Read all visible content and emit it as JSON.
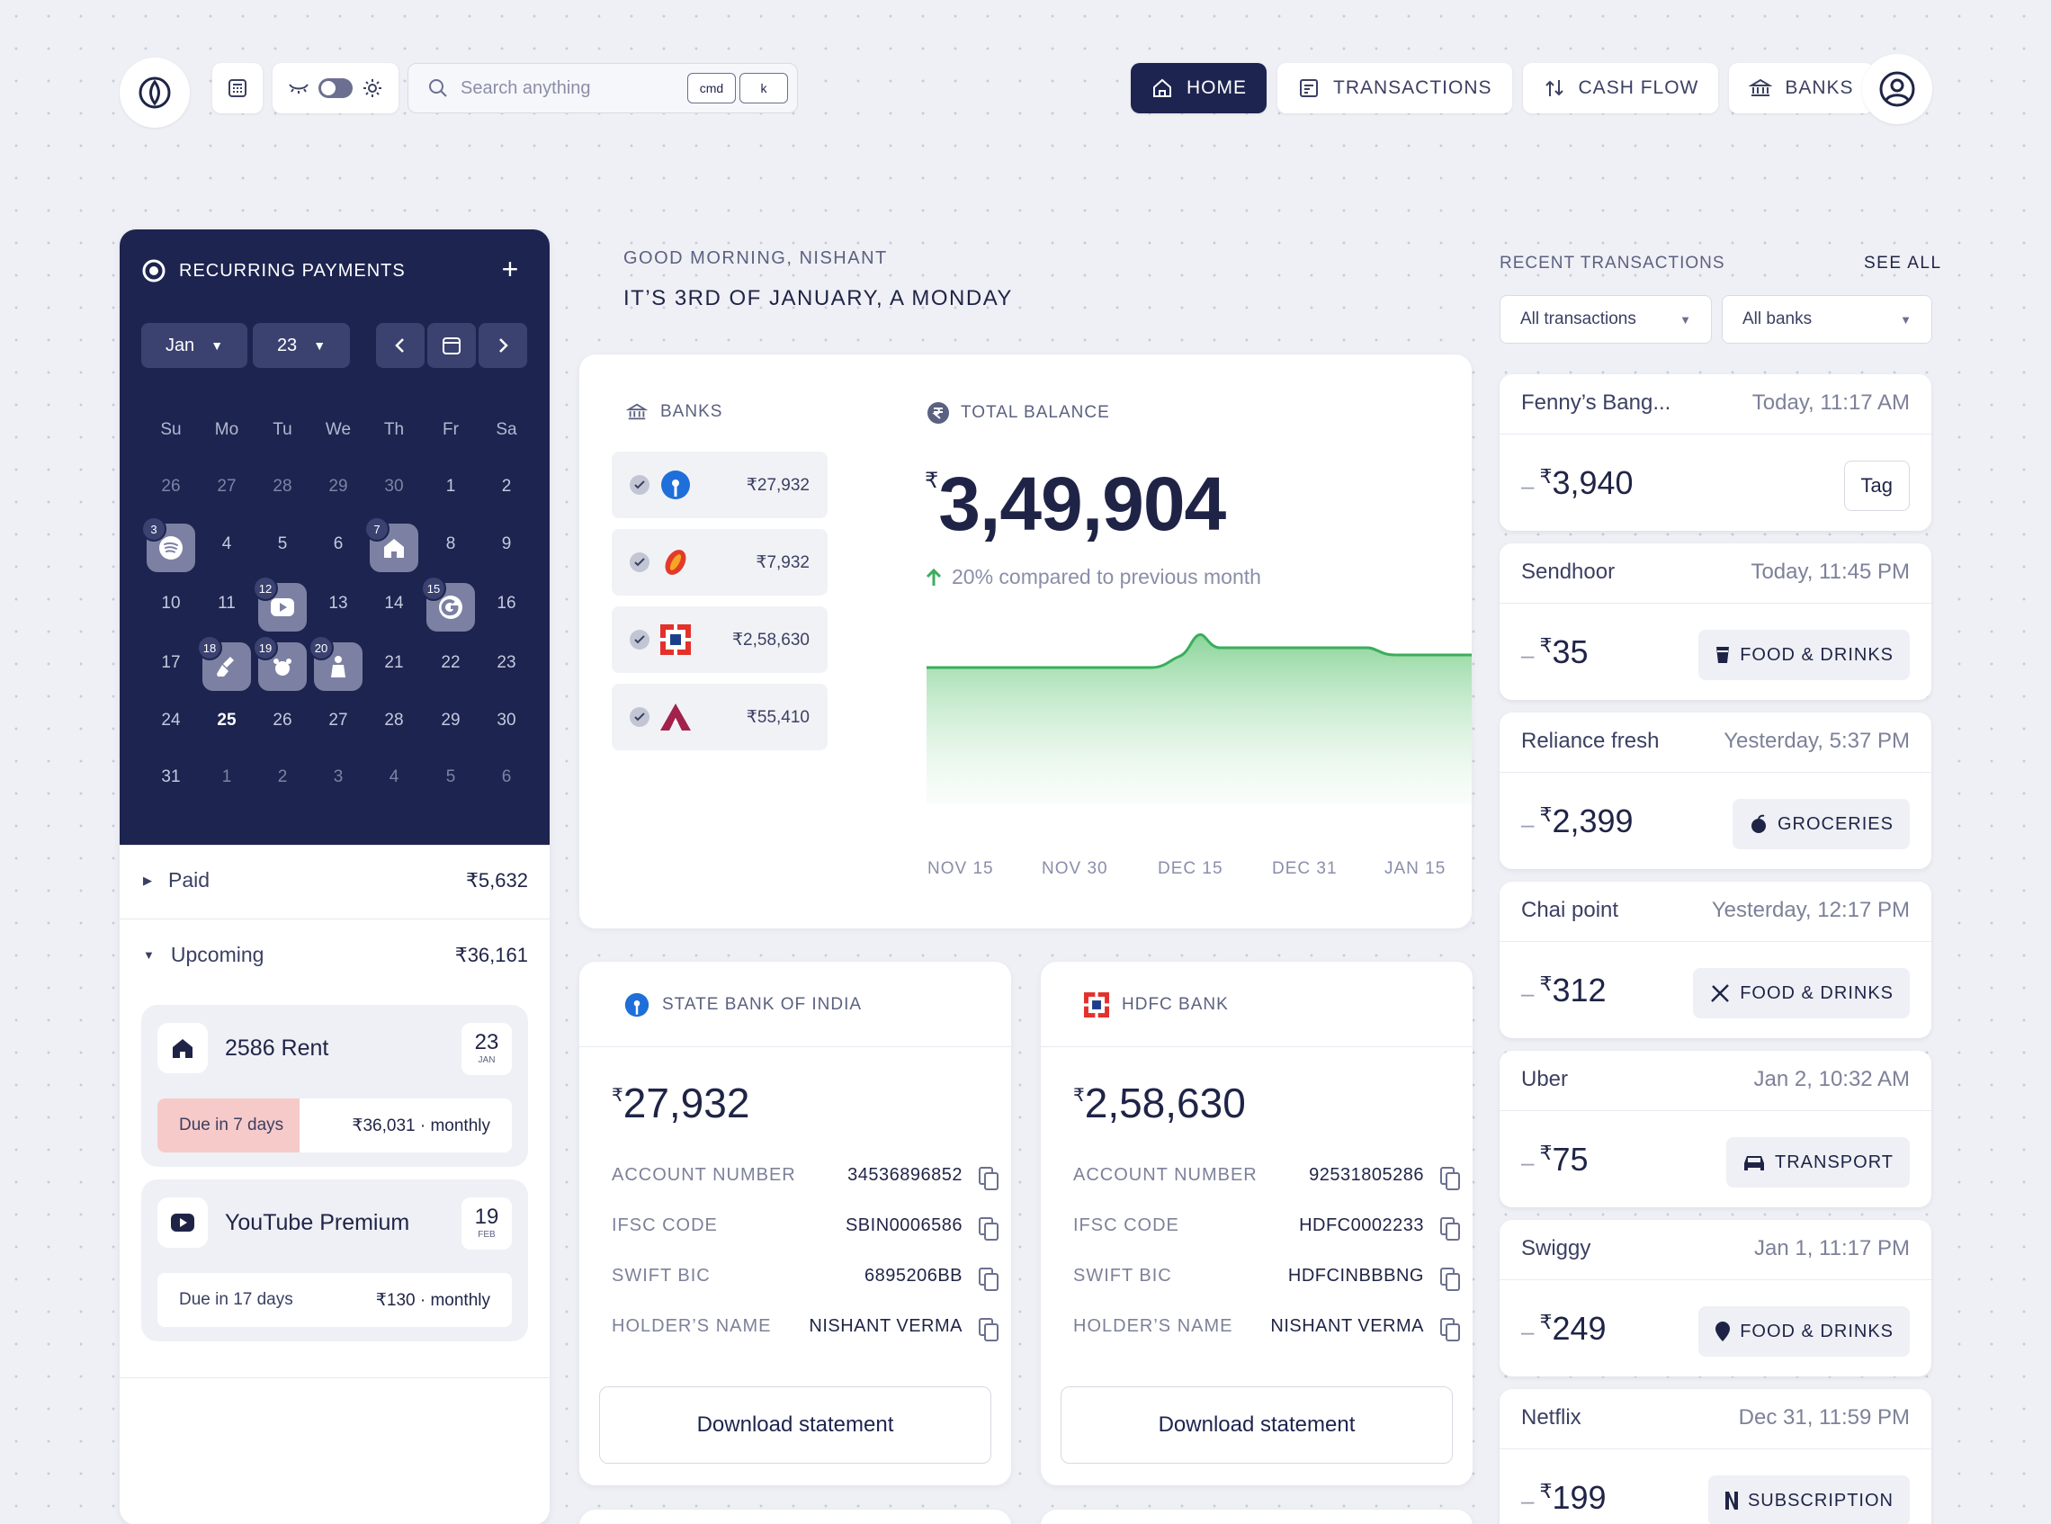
{
  "header": {
    "search_placeholder": "Search anything",
    "kbd1": "cmd",
    "kbd2": "k",
    "nav": [
      {
        "label": "HOME",
        "icon": "home-icon",
        "active": true
      },
      {
        "label": "TRANSACTIONS",
        "icon": "receipt-icon",
        "active": false
      },
      {
        "label": "CASH FLOW",
        "icon": "cashflow-icon",
        "active": false
      },
      {
        "label": "BANKS",
        "icon": "bank-icon",
        "active": false
      }
    ]
  },
  "recurring": {
    "title": "RECURRING PAYMENTS",
    "month": "Jan",
    "year": "23",
    "dow": [
      "Su",
      "Mo",
      "Tu",
      "We",
      "Th",
      "Fr",
      "Sa"
    ],
    "weeks": [
      [
        "26",
        "27",
        "28",
        "29",
        "30",
        "1",
        "2"
      ],
      [
        "3",
        "4",
        "5",
        "6",
        "7",
        "8",
        "9"
      ],
      [
        "10",
        "11",
        "12",
        "13",
        "14",
        "15",
        "16"
      ],
      [
        "17",
        "18",
        "19",
        "20",
        "21",
        "22",
        "23"
      ],
      [
        "24",
        "25",
        "26",
        "27",
        "28",
        "29",
        "30"
      ],
      [
        "31",
        "1",
        "2",
        "3",
        "4",
        "5",
        "6"
      ]
    ],
    "events": [
      {
        "day": "3",
        "icon": "spotify-icon"
      },
      {
        "day": "7",
        "icon": "house-icon"
      },
      {
        "day": "12",
        "icon": "youtube-icon"
      },
      {
        "day": "15",
        "icon": "google-icon"
      },
      {
        "day": "18",
        "icon": "cleaning-icon"
      },
      {
        "day": "19",
        "icon": "pet-icon"
      },
      {
        "day": "20",
        "icon": "maid-icon"
      }
    ],
    "today": "25",
    "paid_label": "Paid",
    "paid_amount": "₹5,632",
    "upcoming_label": "Upcoming",
    "upcoming_amount": "₹36,161",
    "upcoming_items": [
      {
        "name": "2586 Rent",
        "date_day": "23",
        "date_month": "JAN",
        "due": "Due in 7 days",
        "amount": "₹36,031 · monthly",
        "icon": "house-icon"
      },
      {
        "name": "YouTube Premium",
        "date_day": "19",
        "date_month": "FEB",
        "due": "Due in 17 days",
        "amount": "₹130 · monthly",
        "icon": "youtube-icon"
      }
    ]
  },
  "greeting": {
    "line1": "GOOD MORNING, NISHANT",
    "line2": "IT’S 3RD OF JANUARY, A MONDAY"
  },
  "overview": {
    "banks_label": "BANKS",
    "banks": [
      {
        "amount": "₹27,932",
        "icon": "sbi-logo-icon"
      },
      {
        "amount": "₹7,932",
        "icon": "icici-logo-icon"
      },
      {
        "amount": "₹2,58,630",
        "icon": "hdfc-logo-icon"
      },
      {
        "amount": "₹55,410",
        "icon": "axis-logo-icon"
      }
    ],
    "total_label": "TOTAL BALANCE",
    "currency": "₹",
    "total": "3,49,904",
    "compare": "20% compared to previous month",
    "x_labels": [
      "NOV 15",
      "NOV 30",
      "DEC 15",
      "DEC 31",
      "JAN 15"
    ]
  },
  "bank_cards": [
    {
      "name": "STATE BANK OF INDIA",
      "currency": "₹",
      "balance": "27,932",
      "rows": [
        {
          "k": "ACCOUNT NUMBER",
          "v": "34536896852"
        },
        {
          "k": "IFSC CODE",
          "v": "SBIN0006586"
        },
        {
          "k": "SWIFT BIC",
          "v": "6895206BB"
        },
        {
          "k": "HOLDER’S NAME",
          "v": "NISHANT VERMA"
        }
      ],
      "button": "Download statement"
    },
    {
      "name": "HDFC BANK",
      "currency": "₹",
      "balance": "2,58,630",
      "rows": [
        {
          "k": "ACCOUNT NUMBER",
          "v": "92531805286"
        },
        {
          "k": "IFSC CODE",
          "v": "HDFC0002233"
        },
        {
          "k": "SWIFT BIC",
          "v": "HDFCINBBBNG"
        },
        {
          "k": "HOLDER’S NAME",
          "v": "NISHANT VERMA"
        }
      ],
      "button": "Download statement"
    }
  ],
  "recent": {
    "title": "RECENT TRANSACTIONS",
    "see_all": "SEE ALL",
    "filter1": "All transactions",
    "filter2": "All banks",
    "items": [
      {
        "name": "Fenny’s Bang...",
        "time": "Today, 11:17 AM",
        "amount": "3,940",
        "tag": "Tag",
        "icon": ""
      },
      {
        "name": "Sendhoor",
        "time": "Today, 11:45 PM",
        "amount": "35",
        "tag": "FOOD & DRINKS",
        "icon": "drink-icon"
      },
      {
        "name": "Reliance fresh",
        "time": "Yesterday, 5:37 PM",
        "amount": "2,399",
        "tag": "GROCERIES",
        "icon": "fruit-icon"
      },
      {
        "name": "Chai point",
        "time": "Yesterday, 12:17 PM",
        "amount": "312",
        "tag": "FOOD & DRINKS",
        "icon": "utensils-icon"
      },
      {
        "name": "Uber",
        "time": "Jan 2, 10:32 AM",
        "amount": "75",
        "tag": "TRANSPORT",
        "icon": "car-icon"
      },
      {
        "name": "Swiggy",
        "time": "Jan 1, 11:17 PM",
        "amount": "249",
        "tag": "FOOD & DRINKS",
        "icon": "swiggy-icon"
      },
      {
        "name": "Netflix",
        "time": "Dec 31, 11:59 PM",
        "amount": "199",
        "tag": "SUBSCRIPTION",
        "icon": "netflix-icon"
      }
    ]
  },
  "colors": {
    "accent": "#1d2450",
    "positive": "#3aae5b",
    "due": "#f7caca"
  }
}
